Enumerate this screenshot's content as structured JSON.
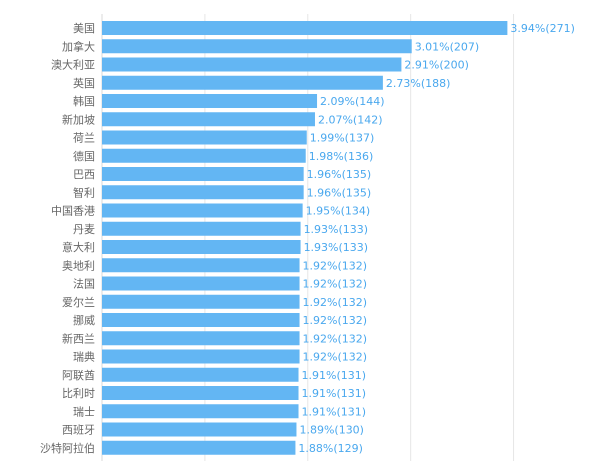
{
  "chart_data": {
    "type": "bar",
    "orientation": "horizontal",
    "title": "",
    "xlabel": "",
    "ylabel": "",
    "grid": true,
    "bar_color": "#63b6f3",
    "label_color": "#4aa8ee",
    "xlim": [
      0,
      4.5
    ],
    "categories": [
      "美国",
      "加拿大",
      "澳大利亚",
      "英国",
      "韩国",
      "新加坡",
      "荷兰",
      "德国",
      "巴西",
      "智利",
      "中国香港",
      "丹麦",
      "意大利",
      "奥地利",
      "法国",
      "爱尔兰",
      "挪威",
      "新西兰",
      "瑞典",
      "阿联酋",
      "比利时",
      "瑞士",
      "西班牙",
      "沙特阿拉伯"
    ],
    "values": [
      3.94,
      3.01,
      2.91,
      2.73,
      2.09,
      2.07,
      1.99,
      1.98,
      1.96,
      1.96,
      1.95,
      1.93,
      1.93,
      1.92,
      1.92,
      1.92,
      1.92,
      1.92,
      1.92,
      1.91,
      1.91,
      1.91,
      1.89,
      1.88
    ],
    "counts": [
      271,
      207,
      200,
      188,
      144,
      142,
      137,
      136,
      135,
      135,
      134,
      133,
      133,
      132,
      132,
      132,
      132,
      132,
      132,
      131,
      131,
      131,
      130,
      129
    ],
    "data_labels": [
      "3.94%(271)",
      "3.01%(207)",
      "2.91%(200)",
      "2.73%(188)",
      "2.09%(144)",
      "2.07%(142)",
      "1.99%(137)",
      "1.98%(136)",
      "1.96%(135)",
      "1.96%(135)",
      "1.95%(134)",
      "1.93%(133)",
      "1.93%(133)",
      "1.92%(132)",
      "1.92%(132)",
      "1.92%(132)",
      "1.92%(132)",
      "1.92%(132)",
      "1.92%(132)",
      "1.91%(131)",
      "1.91%(131)",
      "1.91%(131)",
      "1.89%(130)",
      "1.88%(129)"
    ]
  }
}
